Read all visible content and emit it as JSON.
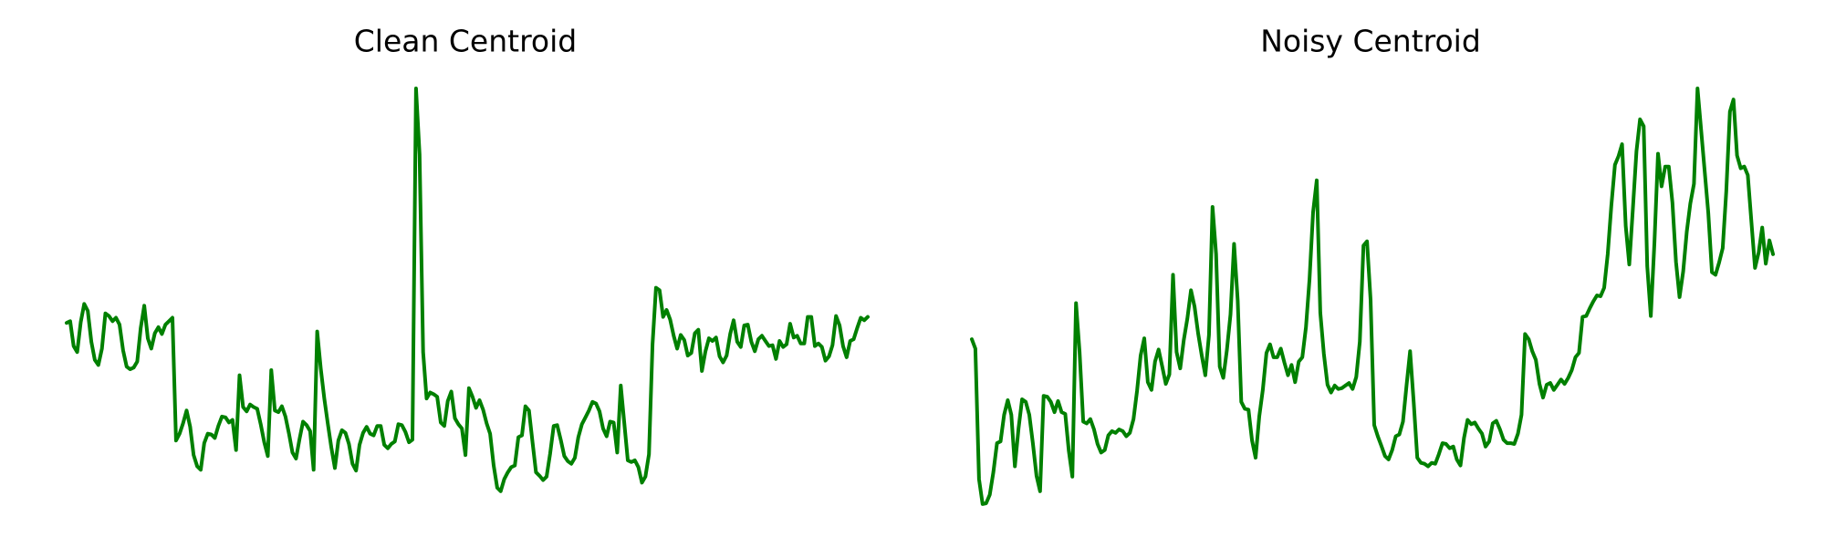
{
  "figure": {
    "panels": [
      {
        "title": "Clean Centroid"
      },
      {
        "title": "Noisy Centroid"
      }
    ]
  },
  "chart_data": [
    {
      "type": "line",
      "title": "Clean Centroid",
      "xlabel": "",
      "ylabel": "",
      "axes_visible": false,
      "grid": false,
      "color": "#008000",
      "x_range": [
        0,
        199
      ],
      "ylim": [
        -1.3,
        3.53
      ],
      "series": [
        {
          "values": [
            0.8,
            0.82,
            0.53,
            0.46,
            0.81,
            1.02,
            0.94,
            0.58,
            0.37,
            0.31,
            0.5,
            0.91,
            0.88,
            0.82,
            0.86,
            0.78,
            0.48,
            0.29,
            0.26,
            0.28,
            0.35,
            0.74,
            1.0,
            0.62,
            0.5,
            0.68,
            0.75,
            0.67,
            0.78,
            0.82,
            0.86,
            -0.57,
            -0.49,
            -0.37,
            -0.22,
            -0.41,
            -0.74,
            -0.87,
            -0.91,
            -0.6,
            -0.49,
            -0.5,
            -0.54,
            -0.4,
            -0.29,
            -0.3,
            -0.36,
            -0.33,
            -0.68,
            0.19,
            -0.18,
            -0.23,
            -0.15,
            -0.18,
            -0.2,
            -0.38,
            -0.59,
            -0.75,
            0.25,
            -0.22,
            -0.24,
            -0.17,
            -0.29,
            -0.49,
            -0.71,
            -0.78,
            -0.55,
            -0.35,
            -0.39,
            -0.46,
            -0.91,
            0.7,
            0.27,
            -0.08,
            -0.37,
            -0.65,
            -0.89,
            -0.57,
            -0.45,
            -0.48,
            -0.61,
            -0.84,
            -0.92,
            -0.62,
            -0.48,
            -0.41,
            -0.49,
            -0.51,
            -0.4,
            -0.4,
            -0.62,
            -0.66,
            -0.61,
            -0.58,
            -0.38,
            -0.39,
            -0.47,
            -0.59,
            -0.56,
            3.53,
            2.76,
            0.46,
            -0.08,
            -0.01,
            -0.03,
            -0.06,
            -0.36,
            -0.4,
            -0.11,
            0.0,
            -0.31,
            -0.38,
            -0.43,
            -0.74,
            0.04,
            -0.06,
            -0.19,
            -0.1,
            -0.21,
            -0.37,
            -0.49,
            -0.86,
            -1.12,
            -1.16,
            -1.02,
            -0.94,
            -0.88,
            -0.86,
            -0.53,
            -0.51,
            -0.17,
            -0.22,
            -0.59,
            -0.94,
            -0.98,
            -1.03,
            -0.99,
            -0.72,
            -0.4,
            -0.39,
            -0.56,
            -0.75,
            -0.81,
            -0.84,
            -0.77,
            -0.53,
            -0.38,
            -0.3,
            -0.22,
            -0.12,
            -0.14,
            -0.23,
            -0.43,
            -0.52,
            -0.35,
            -0.36,
            -0.71,
            0.07,
            -0.36,
            -0.8,
            -0.82,
            -0.8,
            -0.88,
            -1.06,
            -0.99,
            -0.73,
            0.55,
            1.21,
            1.18,
            0.87,
            0.95,
            0.84,
            0.65,
            0.5,
            0.66,
            0.6,
            0.42,
            0.45,
            0.68,
            0.72,
            0.24,
            0.47,
            0.62,
            0.59,
            0.63,
            0.41,
            0.34,
            0.42,
            0.67,
            0.83,
            0.58,
            0.52,
            0.77,
            0.78,
            0.58,
            0.47,
            0.61,
            0.65,
            0.59,
            0.53,
            0.54,
            0.38,
            0.59,
            0.52,
            0.55,
            0.79,
            0.63,
            0.65,
            0.56,
            0.56,
            0.87,
            0.87,
            0.53,
            0.56,
            0.52,
            0.36,
            0.41,
            0.54,
            0.88,
            0.77,
            0.53,
            0.4,
            0.59,
            0.61,
            0.74,
            0.86,
            0.83,
            0.87
          ]
        }
      ]
    },
    {
      "type": "line",
      "title": "Noisy Centroid",
      "xlabel": "",
      "ylabel": "",
      "axes_visible": false,
      "grid": false,
      "color": "#008000",
      "x_range": [
        0,
        199
      ],
      "ylim": [
        -1.3,
        3.53
      ],
      "series": [
        {
          "values": [
            0.61,
            0.5,
            -1.02,
            -1.31,
            -1.3,
            -1.2,
            -0.94,
            -0.6,
            -0.58,
            -0.27,
            -0.1,
            -0.27,
            -0.87,
            -0.43,
            -0.09,
            -0.12,
            -0.27,
            -0.6,
            -0.98,
            -1.16,
            -0.05,
            -0.06,
            -0.12,
            -0.24,
            -0.11,
            -0.24,
            -0.26,
            -0.69,
            -0.99,
            1.03,
            0.46,
            -0.35,
            -0.37,
            -0.32,
            -0.44,
            -0.61,
            -0.71,
            -0.68,
            -0.51,
            -0.46,
            -0.48,
            -0.44,
            -0.46,
            -0.52,
            -0.48,
            -0.32,
            0.01,
            0.42,
            0.62,
            0.11,
            0.02,
            0.35,
            0.49,
            0.29,
            0.09,
            0.2,
            1.36,
            0.46,
            0.27,
            0.6,
            0.85,
            1.18,
            0.99,
            0.68,
            0.42,
            0.19,
            0.66,
            2.15,
            1.6,
            0.29,
            0.16,
            0.48,
            0.9,
            1.72,
            1.06,
            -0.12,
            -0.2,
            -0.21,
            -0.57,
            -0.77,
            -0.29,
            0.02,
            0.45,
            0.55,
            0.4,
            0.4,
            0.5,
            0.34,
            0.19,
            0.31,
            0.11,
            0.35,
            0.4,
            0.75,
            1.31,
            2.09,
            2.46,
            0.92,
            0.44,
            0.08,
            -0.01,
            0.07,
            0.03,
            0.04,
            0.07,
            0.1,
            0.03,
            0.17,
            0.58,
            1.7,
            1.75,
            1.07,
            -0.39,
            -0.52,
            -0.63,
            -0.75,
            -0.79,
            -0.68,
            -0.52,
            -0.5,
            -0.35,
            0.07,
            0.47,
            -0.13,
            -0.77,
            -0.83,
            -0.84,
            -0.87,
            -0.83,
            -0.84,
            -0.73,
            -0.6,
            -0.61,
            -0.66,
            -0.64,
            -0.79,
            -0.86,
            -0.54,
            -0.33,
            -0.38,
            -0.36,
            -0.43,
            -0.49,
            -0.64,
            -0.58,
            -0.37,
            -0.34,
            -0.44,
            -0.56,
            -0.6,
            -0.6,
            -0.61,
            -0.49,
            -0.27,
            0.67,
            0.61,
            0.47,
            0.37,
            0.09,
            -0.07,
            0.08,
            0.1,
            0.02,
            0.08,
            0.14,
            0.09,
            0.16,
            0.25,
            0.4,
            0.45,
            0.87,
            0.88,
            0.97,
            1.05,
            1.12,
            1.11,
            1.21,
            1.6,
            2.16,
            2.64,
            2.74,
            2.88,
            1.93,
            1.48,
            2.12,
            2.8,
            3.17,
            3.09,
            1.46,
            0.88,
            1.74,
            2.77,
            2.39,
            2.62,
            2.62,
            2.2,
            1.51,
            1.1,
            1.4,
            1.86,
            2.19,
            2.42,
            3.53,
            3.04,
            2.56,
            2.08,
            1.39,
            1.36,
            1.5,
            1.67,
            2.33,
            3.26,
            3.4,
            2.75,
            2.6,
            2.62,
            2.52,
            1.97,
            1.44,
            1.62,
            1.91,
            1.49,
            1.76,
            1.6
          ]
        }
      ]
    }
  ]
}
